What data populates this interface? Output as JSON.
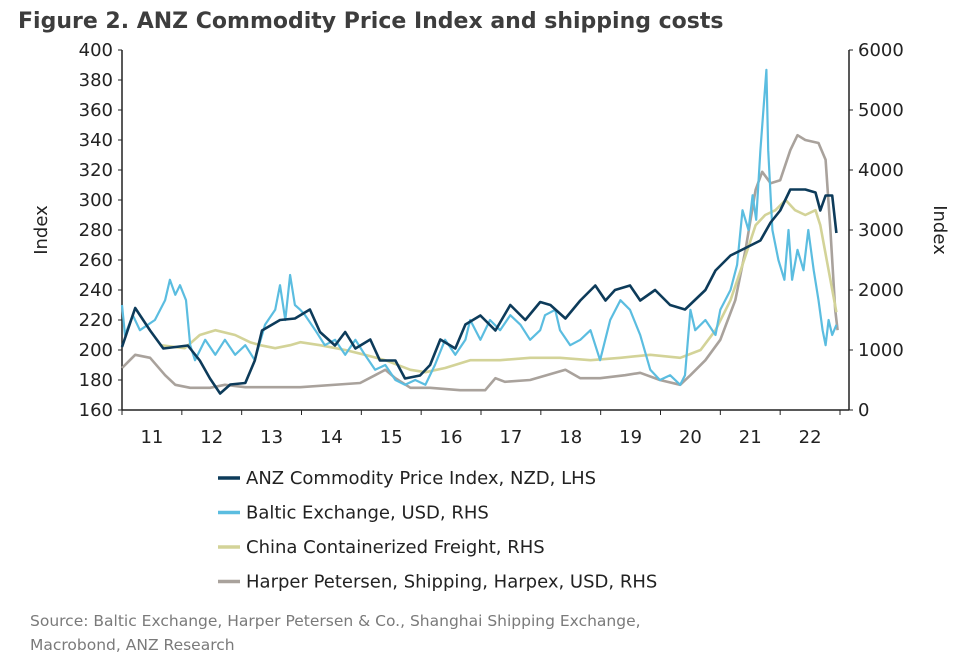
{
  "chart_data": {
    "type": "line",
    "title": "Figure 2. ANZ Commodity Price Index and shipping costs",
    "ylabel_left": "Index",
    "ylabel_right": "Index",
    "ylim_left": [
      160,
      400
    ],
    "ylim_right": [
      0,
      6000
    ],
    "xlim": [
      2011,
      2023
    ],
    "x_ticks": [
      "11",
      "12",
      "13",
      "14",
      "15",
      "16",
      "17",
      "18",
      "19",
      "20",
      "21",
      "22"
    ],
    "y_ticks_left": [
      "400",
      "380",
      "360",
      "340",
      "320",
      "300",
      "280",
      "260",
      "240",
      "220",
      "200",
      "180",
      "160"
    ],
    "y_ticks_right": [
      "6000",
      "5000",
      "4000",
      "3000",
      "2000",
      "1000",
      "0"
    ],
    "grid": false,
    "legend_position": "bottom",
    "source": [
      "Source: Baltic Exchange, Harper Petersen & Co., Shanghai Shipping Exchange,",
      "Macrobond, ANZ Research"
    ],
    "series": [
      {
        "name": "ANZ Commodity Price Index, NZD, LHS",
        "axis": "left",
        "color": "#0d3b5a",
        "points": [
          [
            2011.0,
            202
          ],
          [
            2011.22,
            228
          ],
          [
            2011.47,
            213
          ],
          [
            2011.69,
            201
          ],
          [
            2012.1,
            203
          ],
          [
            2012.3,
            193
          ],
          [
            2012.47,
            181
          ],
          [
            2012.64,
            171
          ],
          [
            2012.81,
            177
          ],
          [
            2013.06,
            178
          ],
          [
            2013.22,
            193
          ],
          [
            2013.34,
            213
          ],
          [
            2013.64,
            220
          ],
          [
            2013.89,
            221
          ],
          [
            2014.14,
            227
          ],
          [
            2014.31,
            212
          ],
          [
            2014.56,
            203
          ],
          [
            2014.73,
            212
          ],
          [
            2014.9,
            201
          ],
          [
            2015.15,
            207
          ],
          [
            2015.31,
            193
          ],
          [
            2015.57,
            193
          ],
          [
            2015.73,
            181
          ],
          [
            2015.98,
            183
          ],
          [
            2016.15,
            190
          ],
          [
            2016.32,
            207
          ],
          [
            2016.57,
            201
          ],
          [
            2016.74,
            217
          ],
          [
            2016.99,
            223
          ],
          [
            2017.24,
            213
          ],
          [
            2017.49,
            230
          ],
          [
            2017.74,
            220
          ],
          [
            2017.99,
            232
          ],
          [
            2018.16,
            230
          ],
          [
            2018.41,
            221
          ],
          [
            2018.66,
            233
          ],
          [
            2018.91,
            243
          ],
          [
            2019.08,
            233
          ],
          [
            2019.24,
            240
          ],
          [
            2019.49,
            243
          ],
          [
            2019.66,
            233
          ],
          [
            2019.91,
            240
          ],
          [
            2020.16,
            230
          ],
          [
            2020.41,
            227
          ],
          [
            2020.75,
            240
          ],
          [
            2020.92,
            253
          ],
          [
            2021.17,
            263
          ],
          [
            2021.42,
            268
          ],
          [
            2021.67,
            273
          ],
          [
            2021.84,
            285
          ],
          [
            2022.0,
            293
          ],
          [
            2022.17,
            307
          ],
          [
            2022.42,
            307
          ],
          [
            2022.59,
            305
          ],
          [
            2022.67,
            293
          ],
          [
            2022.76,
            303
          ],
          [
            2022.87,
            303
          ],
          [
            2022.94,
            278
          ]
        ]
      },
      {
        "name": "Baltic Exchange, USD, RHS",
        "axis": "right",
        "color": "#5bbde0",
        "points": [
          [
            2011.0,
            1750
          ],
          [
            2011.05,
            1250
          ],
          [
            2011.18,
            1580
          ],
          [
            2011.3,
            1330
          ],
          [
            2011.55,
            1500
          ],
          [
            2011.72,
            1830
          ],
          [
            2011.8,
            2170
          ],
          [
            2011.89,
            1920
          ],
          [
            2011.97,
            2080
          ],
          [
            2012.07,
            1830
          ],
          [
            2012.14,
            1080
          ],
          [
            2012.22,
            830
          ],
          [
            2012.39,
            1170
          ],
          [
            2012.56,
            920
          ],
          [
            2012.72,
            1170
          ],
          [
            2012.89,
            920
          ],
          [
            2013.06,
            1080
          ],
          [
            2013.22,
            830
          ],
          [
            2013.39,
            1420
          ],
          [
            2013.56,
            1670
          ],
          [
            2013.64,
            2080
          ],
          [
            2013.73,
            1500
          ],
          [
            2013.81,
            2250
          ],
          [
            2013.89,
            1750
          ],
          [
            2013.98,
            1670
          ],
          [
            2014.06,
            1580
          ],
          [
            2014.23,
            1330
          ],
          [
            2014.39,
            1080
          ],
          [
            2014.56,
            1170
          ],
          [
            2014.73,
            920
          ],
          [
            2014.9,
            1170
          ],
          [
            2015.06,
            920
          ],
          [
            2015.23,
            670
          ],
          [
            2015.4,
            750
          ],
          [
            2015.57,
            500
          ],
          [
            2015.73,
            420
          ],
          [
            2015.9,
            500
          ],
          [
            2016.07,
            420
          ],
          [
            2016.23,
            750
          ],
          [
            2016.4,
            1170
          ],
          [
            2016.57,
            920
          ],
          [
            2016.74,
            1170
          ],
          [
            2016.82,
            1500
          ],
          [
            2016.99,
            1170
          ],
          [
            2017.15,
            1500
          ],
          [
            2017.32,
            1330
          ],
          [
            2017.49,
            1580
          ],
          [
            2017.66,
            1420
          ],
          [
            2017.82,
            1170
          ],
          [
            2017.99,
            1330
          ],
          [
            2018.07,
            1580
          ],
          [
            2018.24,
            1670
          ],
          [
            2018.32,
            1330
          ],
          [
            2018.49,
            1080
          ],
          [
            2018.66,
            1170
          ],
          [
            2018.83,
            1330
          ],
          [
            2018.99,
            830
          ],
          [
            2019.16,
            1500
          ],
          [
            2019.33,
            1830
          ],
          [
            2019.49,
            1670
          ],
          [
            2019.66,
            1250
          ],
          [
            2019.83,
            670
          ],
          [
            2019.99,
            500
          ],
          [
            2020.16,
            580
          ],
          [
            2020.33,
            420
          ],
          [
            2020.41,
            580
          ],
          [
            2020.5,
            1670
          ],
          [
            2020.58,
            1330
          ],
          [
            2020.75,
            1500
          ],
          [
            2020.92,
            1250
          ],
          [
            2021.0,
            1670
          ],
          [
            2021.17,
            2000
          ],
          [
            2021.28,
            2420
          ],
          [
            2021.37,
            3330
          ],
          [
            2021.47,
            3000
          ],
          [
            2021.54,
            3580
          ],
          [
            2021.6,
            3170
          ],
          [
            2021.67,
            4330
          ],
          [
            2021.72,
            5000
          ],
          [
            2021.77,
            5670
          ],
          [
            2021.8,
            4330
          ],
          [
            2021.87,
            3000
          ],
          [
            2021.97,
            2500
          ],
          [
            2022.07,
            2170
          ],
          [
            2022.14,
            3000
          ],
          [
            2022.2,
            2170
          ],
          [
            2022.29,
            2670
          ],
          [
            2022.39,
            2330
          ],
          [
            2022.47,
            3000
          ],
          [
            2022.56,
            2330
          ],
          [
            2022.64,
            1830
          ],
          [
            2022.71,
            1330
          ],
          [
            2022.76,
            1080
          ],
          [
            2022.81,
            1500
          ],
          [
            2022.87,
            1250
          ],
          [
            2022.94,
            1420
          ]
        ]
      },
      {
        "name": "China Containerized Freight, RHS",
        "axis": "right",
        "color": "#d3d398",
        "points": [
          [
            2011.64,
            1080
          ],
          [
            2012.05,
            1030
          ],
          [
            2012.3,
            1250
          ],
          [
            2012.56,
            1330
          ],
          [
            2012.89,
            1250
          ],
          [
            2013.14,
            1130
          ],
          [
            2013.31,
            1080
          ],
          [
            2013.56,
            1030
          ],
          [
            2013.81,
            1080
          ],
          [
            2013.98,
            1130
          ],
          [
            2014.31,
            1080
          ],
          [
            2014.73,
            1000
          ],
          [
            2015.06,
            920
          ],
          [
            2015.4,
            830
          ],
          [
            2015.82,
            670
          ],
          [
            2016.07,
            630
          ],
          [
            2016.4,
            700
          ],
          [
            2016.82,
            830
          ],
          [
            2017.32,
            830
          ],
          [
            2017.82,
            870
          ],
          [
            2018.32,
            870
          ],
          [
            2018.83,
            830
          ],
          [
            2019.33,
            870
          ],
          [
            2019.83,
            920
          ],
          [
            2020.33,
            870
          ],
          [
            2020.67,
            1000
          ],
          [
            2020.92,
            1330
          ],
          [
            2021.17,
            1830
          ],
          [
            2021.37,
            2420
          ],
          [
            2021.59,
            3080
          ],
          [
            2021.75,
            3250
          ],
          [
            2021.92,
            3330
          ],
          [
            2022.09,
            3500
          ],
          [
            2022.25,
            3330
          ],
          [
            2022.42,
            3250
          ],
          [
            2022.59,
            3330
          ],
          [
            2022.67,
            3080
          ],
          [
            2022.81,
            2330
          ],
          [
            2022.94,
            1630
          ]
        ]
      },
      {
        "name": "Harper Petersen, Shipping, Harpex, USD, RHS",
        "axis": "right",
        "color": "#a9a29c",
        "points": [
          [
            2011.0,
            700
          ],
          [
            2011.22,
            920
          ],
          [
            2011.47,
            870
          ],
          [
            2011.72,
            580
          ],
          [
            2011.89,
            420
          ],
          [
            2012.14,
            370
          ],
          [
            2012.47,
            370
          ],
          [
            2012.72,
            420
          ],
          [
            2013.06,
            380
          ],
          [
            2013.98,
            380
          ],
          [
            2014.98,
            450
          ],
          [
            2015.23,
            580
          ],
          [
            2015.4,
            670
          ],
          [
            2015.57,
            530
          ],
          [
            2015.82,
            370
          ],
          [
            2016.15,
            370
          ],
          [
            2016.65,
            330
          ],
          [
            2017.07,
            330
          ],
          [
            2017.24,
            530
          ],
          [
            2017.4,
            470
          ],
          [
            2017.82,
            500
          ],
          [
            2018.41,
            670
          ],
          [
            2018.66,
            530
          ],
          [
            2018.99,
            530
          ],
          [
            2019.41,
            580
          ],
          [
            2019.66,
            620
          ],
          [
            2019.99,
            500
          ],
          [
            2020.33,
            420
          ],
          [
            2020.5,
            580
          ],
          [
            2020.75,
            830
          ],
          [
            2021.0,
            1170
          ],
          [
            2021.25,
            1830
          ],
          [
            2021.42,
            2670
          ],
          [
            2021.59,
            3670
          ],
          [
            2021.7,
            3970
          ],
          [
            2021.84,
            3780
          ],
          [
            2022.0,
            3830
          ],
          [
            2022.17,
            4330
          ],
          [
            2022.29,
            4580
          ],
          [
            2022.42,
            4500
          ],
          [
            2022.64,
            4450
          ],
          [
            2022.76,
            4170
          ],
          [
            2022.84,
            3000
          ],
          [
            2022.92,
            1670
          ],
          [
            2022.96,
            1330
          ]
        ]
      }
    ]
  }
}
